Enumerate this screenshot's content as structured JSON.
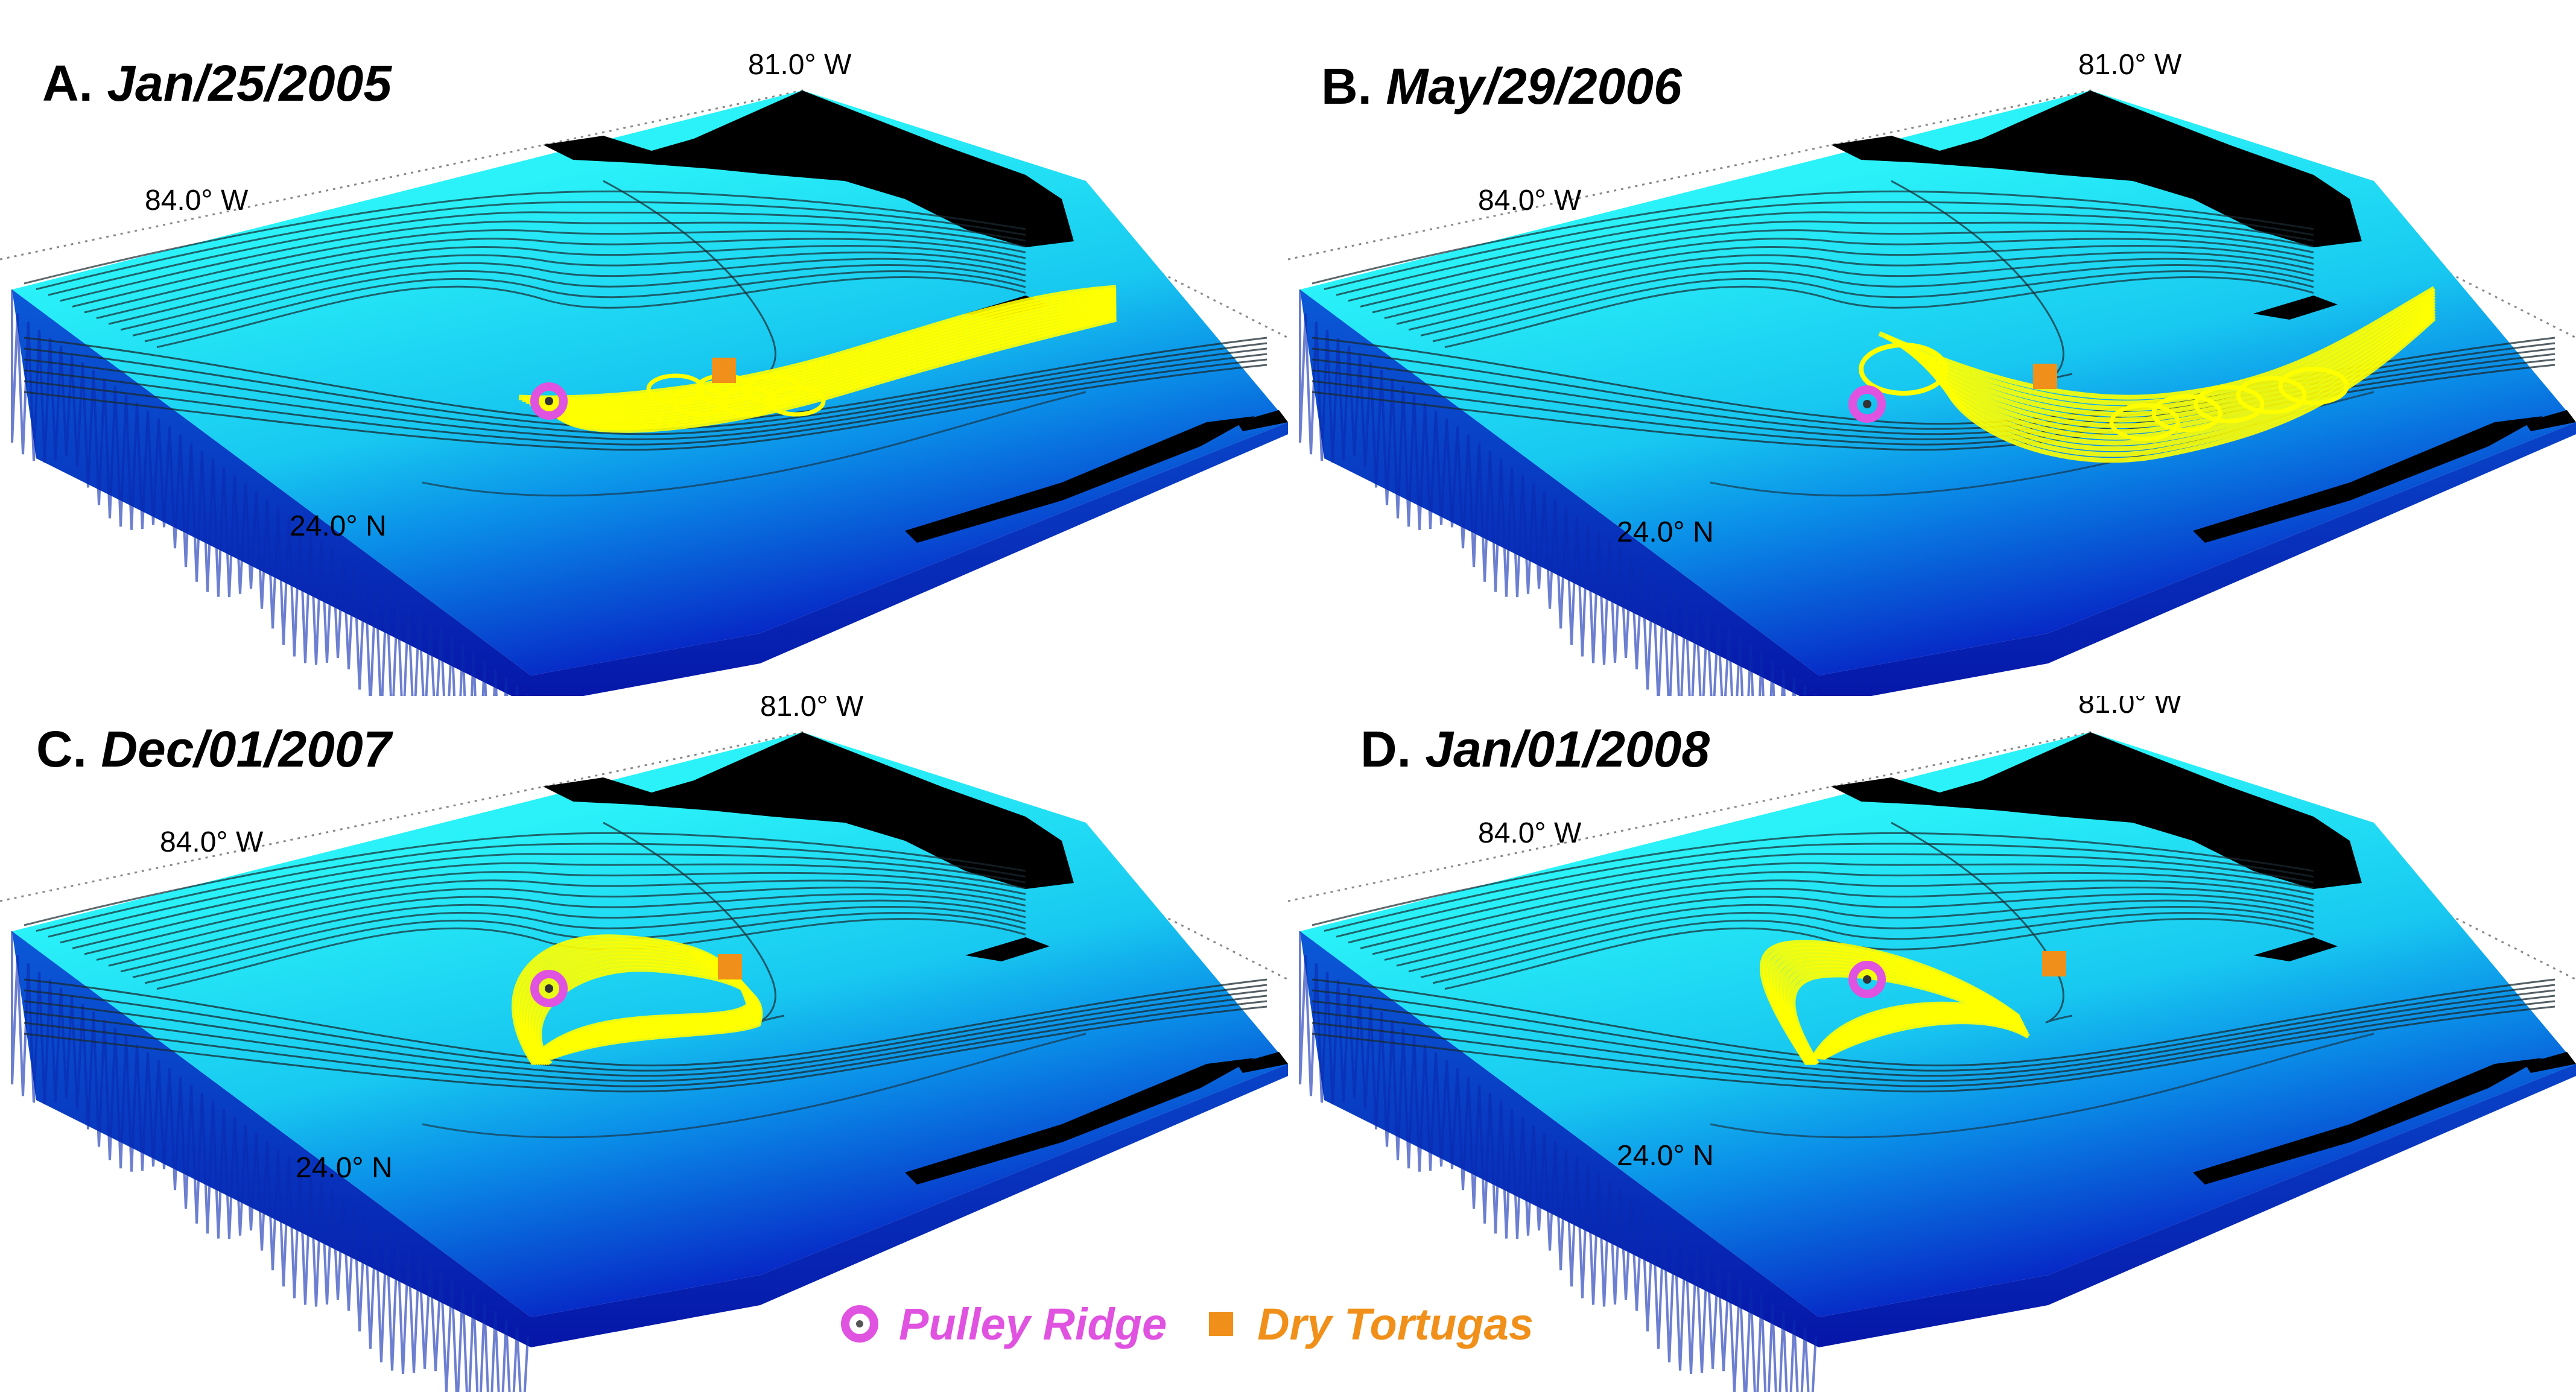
{
  "panels": [
    {
      "letter": "A.",
      "date": "Jan/25/2005",
      "lon_west": "84.0° W",
      "lon_east": "81.0° W",
      "lat": "24.0° N",
      "pattern": "east"
    },
    {
      "letter": "B.",
      "date": "May/29/2006",
      "lon_west": "84.0° W",
      "lon_east": "81.0° W",
      "lat": "24.0° N",
      "pattern": "east_wide"
    },
    {
      "letter": "C.",
      "date": "Dec/01/2007",
      "lon_west": "84.0° W",
      "lon_east": "81.0° W",
      "lat": "24.0° N",
      "pattern": "loop"
    },
    {
      "letter": "D.",
      "date": "Jan/01/2008",
      "lon_west": "84.0° W",
      "lon_east": "81.0° W",
      "lat": "24.0° N",
      "pattern": "loop_west"
    }
  ],
  "legend": {
    "pulley_ridge": {
      "label": "Pulley Ridge",
      "color": "#e052e0"
    },
    "dry_tortugas": {
      "label": "Dry Tortugas",
      "color": "#f0901a"
    }
  },
  "colors": {
    "land": "#000000",
    "shelf": "#20e8f0",
    "deep": "#0a18c8",
    "trajectory": "#ffff00",
    "contour": "#1a2a30"
  }
}
